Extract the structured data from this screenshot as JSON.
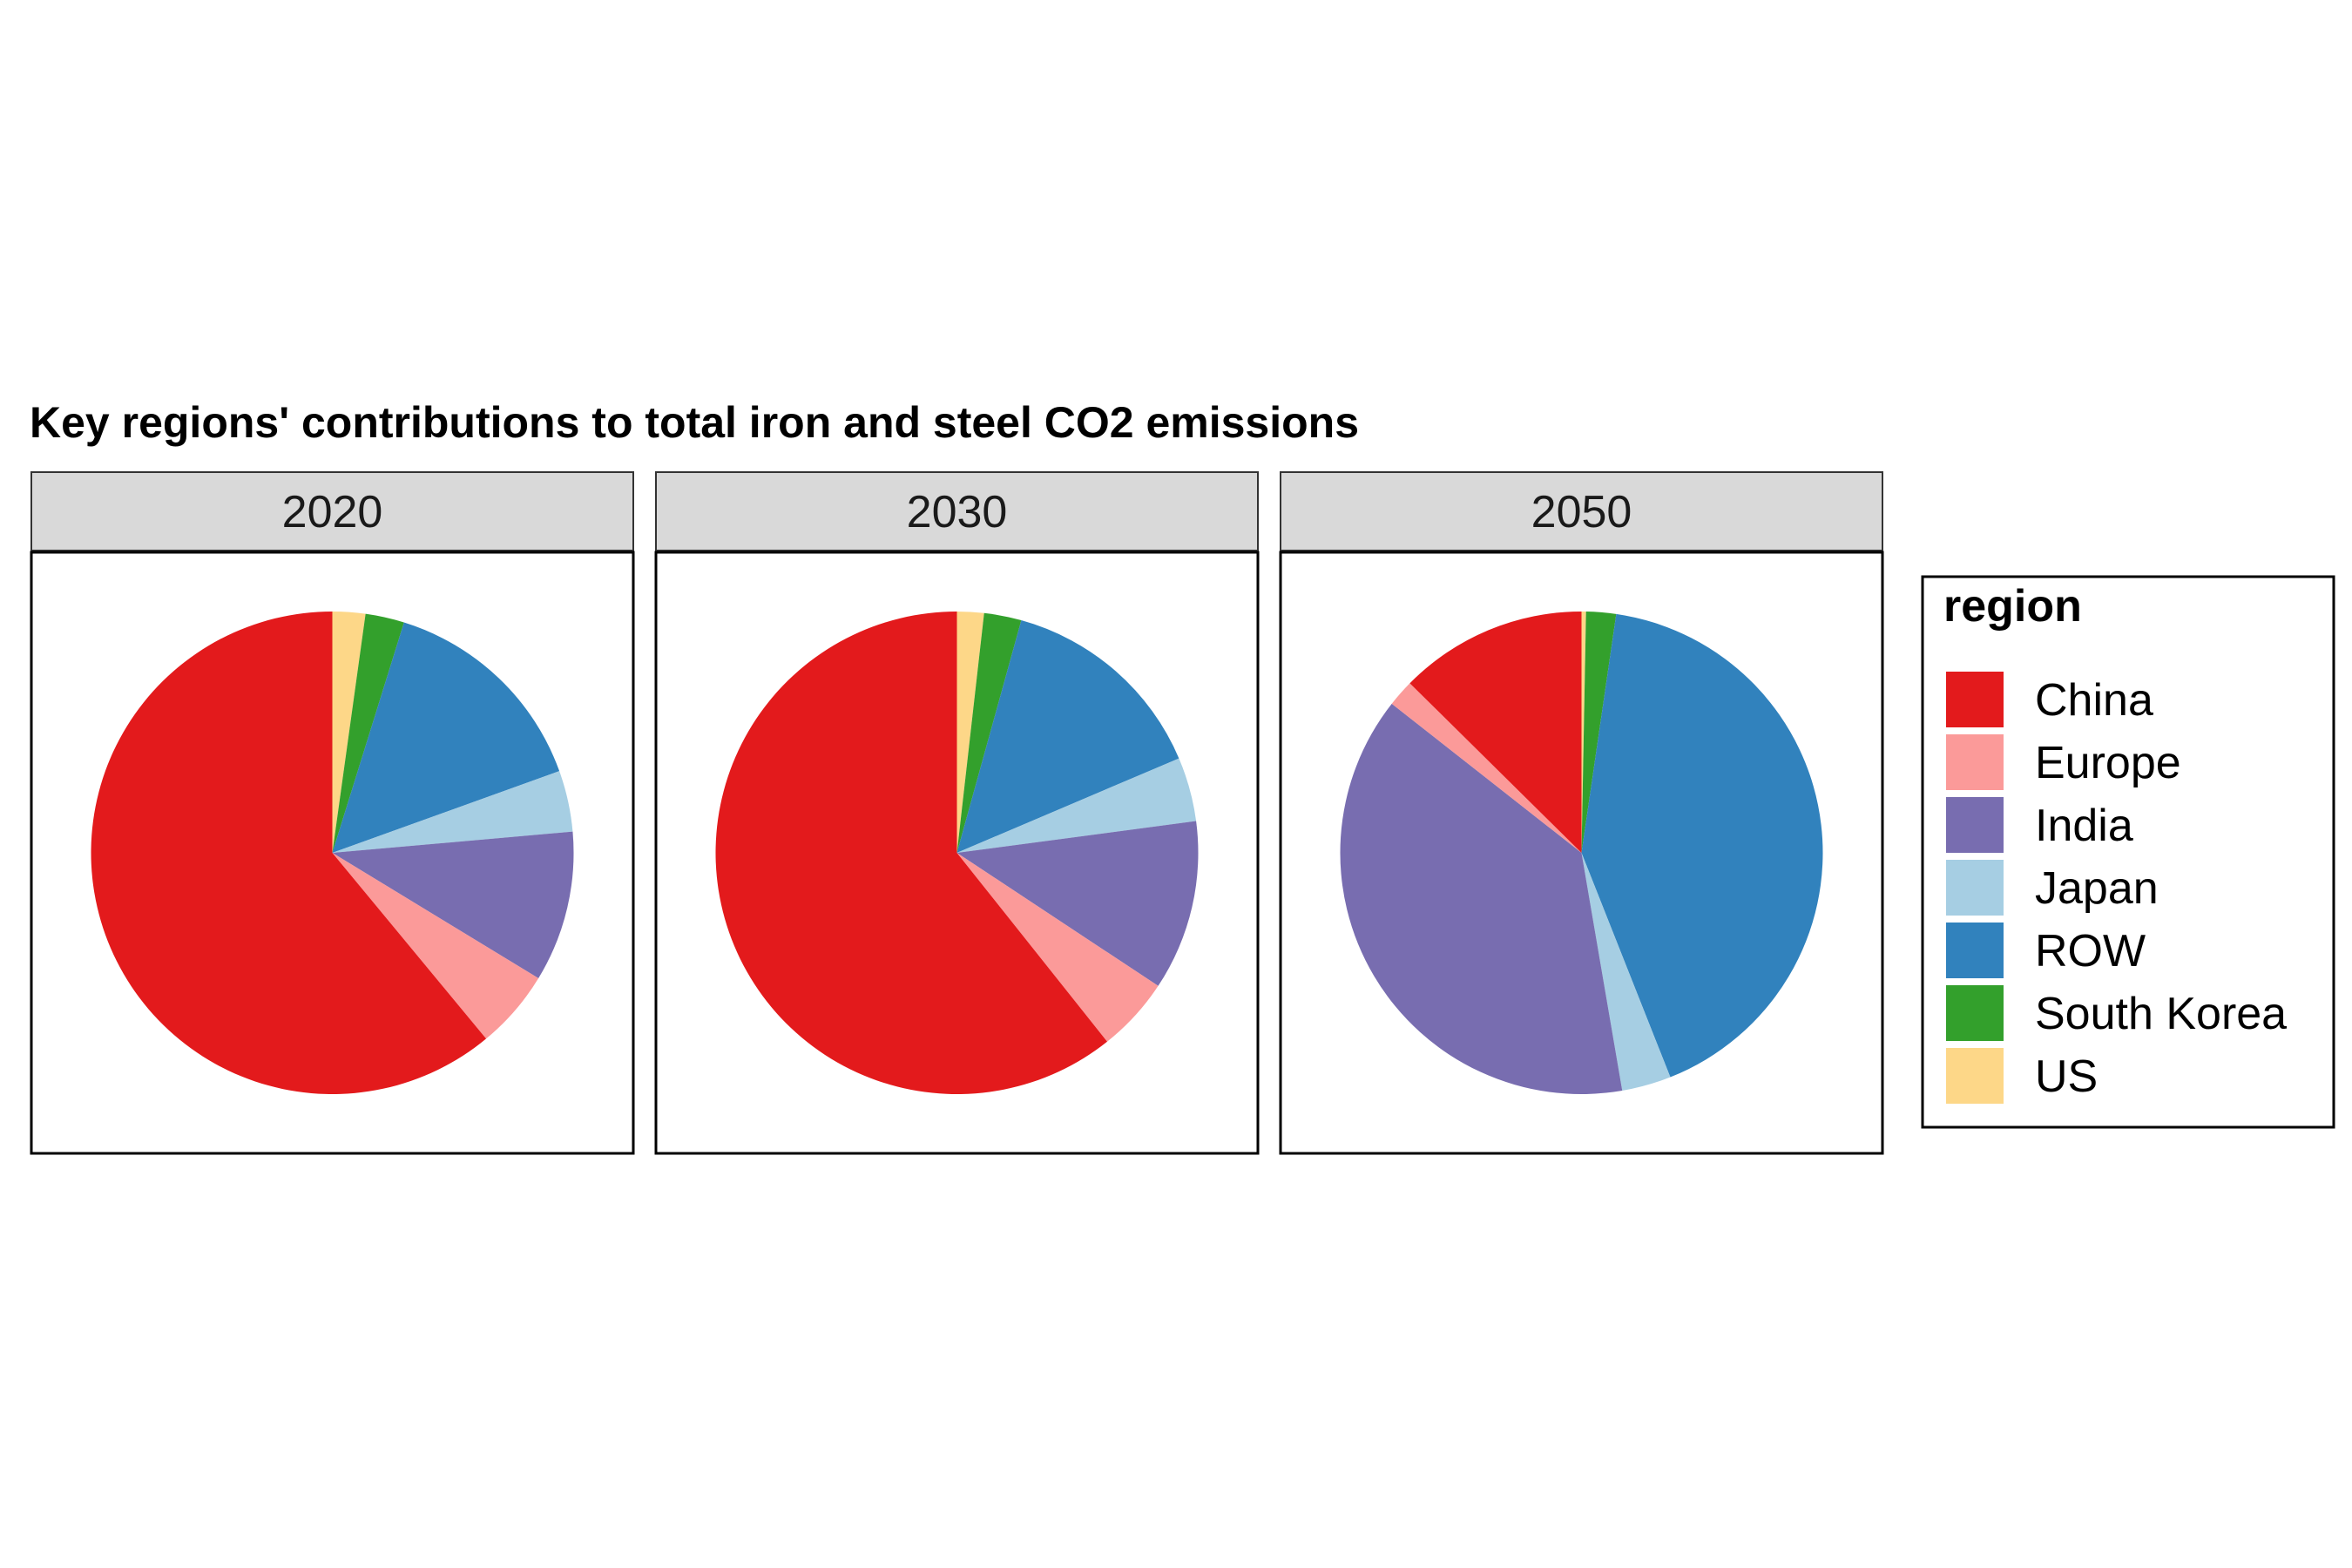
{
  "chart_data": {
    "type": "pie",
    "title": "Key regions' contributions to total iron and steel CO2 emissions",
    "legend": {
      "title": "region",
      "position": "right",
      "entries": [
        "China",
        "Europe",
        "India",
        "Japan",
        "ROW",
        "South Korea",
        "US"
      ]
    },
    "colors": {
      "China": "#e31a1c",
      "Europe": "#fb9a99",
      "India": "#786db0",
      "Japan": "#a6cee3",
      "ROW": "#3182bd",
      "South Korea": "#33a02c",
      "US": "#fdd788"
    },
    "categories": [
      "US",
      "South Korea",
      "ROW",
      "Japan",
      "India",
      "Europe",
      "China"
    ],
    "facets": [
      {
        "label": "2020",
        "values": {
          "US": 2.2,
          "South Korea": 2.6,
          "ROW": 14.7,
          "Japan": 4.1,
          "India": 10.1,
          "Europe": 5.3,
          "China": 61.0
        }
      },
      {
        "label": "2030",
        "values": {
          "US": 1.8,
          "South Korea": 2.5,
          "ROW": 14.3,
          "Japan": 4.3,
          "India": 11.4,
          "Europe": 5.0,
          "China": 60.7
        }
      },
      {
        "label": "2050",
        "values": {
          "US": 0.3,
          "South Korea": 2.0,
          "ROW": 41.7,
          "Japan": 3.3,
          "India": 38.3,
          "Europe": 1.8,
          "China": 12.6
        }
      }
    ]
  }
}
